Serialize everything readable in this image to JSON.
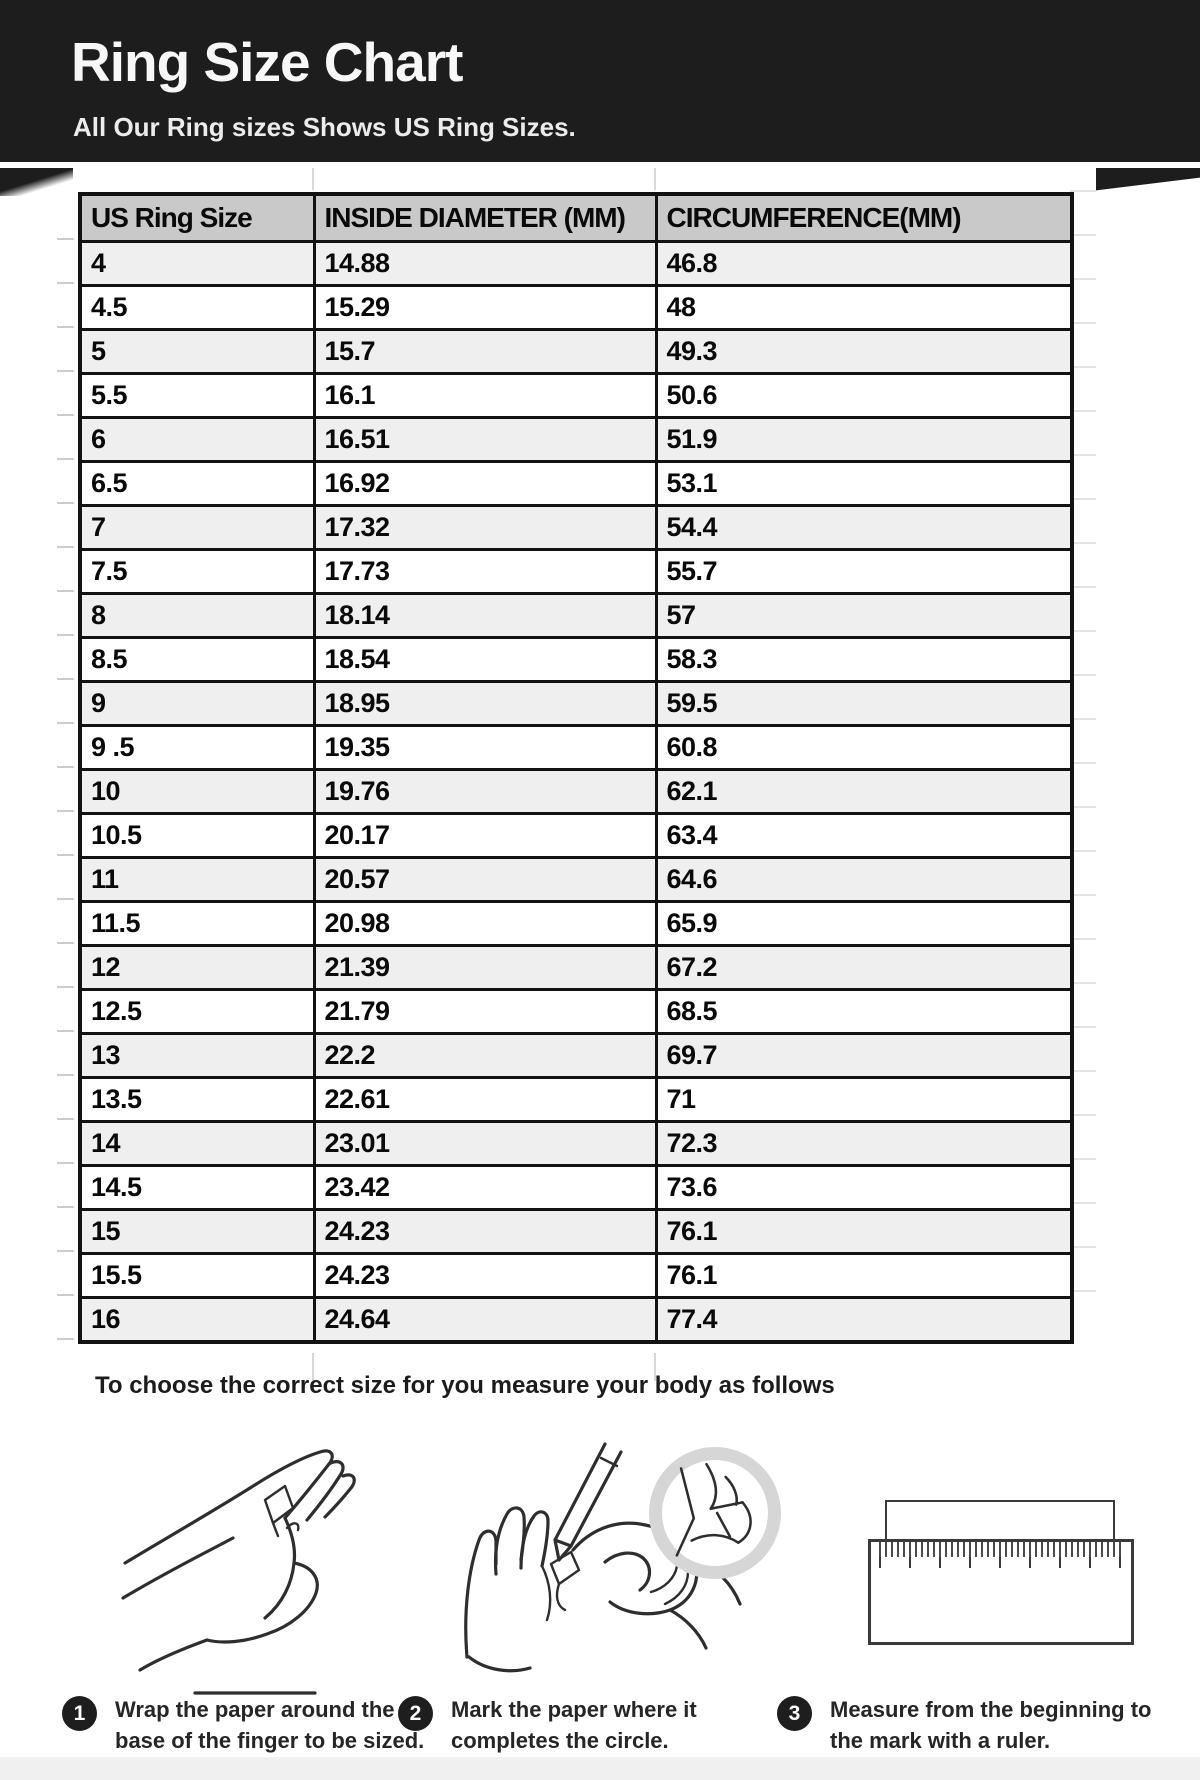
{
  "header": {
    "title": "Ring Size Chart",
    "subtitle": "All Our Ring sizes Shows US Ring Sizes."
  },
  "table": {
    "columns": [
      "US Ring Size",
      "INSIDE DIAMETER (MM)",
      "CIRCUMFERENCE(MM)"
    ],
    "rows": [
      [
        "4",
        "14.88",
        "46.8"
      ],
      [
        "4.5",
        "15.29",
        "48"
      ],
      [
        "5",
        "15.7",
        "49.3"
      ],
      [
        "5.5",
        "16.1",
        "50.6"
      ],
      [
        "6",
        "16.51",
        "51.9"
      ],
      [
        "6.5",
        "16.92",
        "53.1"
      ],
      [
        "7",
        "17.32",
        "54.4"
      ],
      [
        "7.5",
        "17.73",
        "55.7"
      ],
      [
        "8",
        "18.14",
        "57"
      ],
      [
        "8.5",
        "18.54",
        "58.3"
      ],
      [
        "9",
        "18.95",
        "59.5"
      ],
      [
        "9 .5",
        "19.35",
        "60.8"
      ],
      [
        "10",
        "19.76",
        "62.1"
      ],
      [
        "10.5",
        "20.17",
        "63.4"
      ],
      [
        "11",
        "20.57",
        "64.6"
      ],
      [
        "11.5",
        "20.98",
        "65.9"
      ],
      [
        "12",
        "21.39",
        "67.2"
      ],
      [
        "12.5",
        "21.79",
        "68.5"
      ],
      [
        "13",
        "22.2",
        "69.7"
      ],
      [
        "13.5",
        "22.61",
        "71"
      ],
      [
        "14",
        "23.01",
        "72.3"
      ],
      [
        "14.5",
        "23.42",
        "73.6"
      ],
      [
        "15",
        "24.23",
        "76.1"
      ],
      [
        "15.5",
        "24.23",
        "76.1"
      ],
      [
        "16",
        "24.64",
        "77.4"
      ]
    ]
  },
  "chart_data": {
    "type": "table",
    "title": "Ring Size Chart",
    "columns": [
      "US Ring Size",
      "INSIDE DIAMETER (MM)",
      "CIRCUMFERENCE(MM)"
    ],
    "us_ring_size": [
      "4",
      "4.5",
      "5",
      "5.5",
      "6",
      "6.5",
      "7",
      "7.5",
      "8",
      "8.5",
      "9",
      "9 .5",
      "10",
      "10.5",
      "11",
      "11.5",
      "12",
      "12.5",
      "13",
      "13.5",
      "14",
      "14.5",
      "15",
      "15.5",
      "16"
    ],
    "inside_diameter_mm": [
      14.88,
      15.29,
      15.7,
      16.1,
      16.51,
      16.92,
      17.32,
      17.73,
      18.14,
      18.54,
      18.95,
      19.35,
      19.76,
      20.17,
      20.57,
      20.98,
      21.39,
      21.79,
      22.2,
      22.61,
      23.01,
      23.42,
      24.23,
      24.23,
      24.64
    ],
    "circumference_mm": [
      46.8,
      48,
      49.3,
      50.6,
      51.9,
      53.1,
      54.4,
      55.7,
      57,
      58.3,
      59.5,
      60.8,
      62.1,
      63.4,
      64.6,
      65.9,
      67.2,
      68.5,
      69.7,
      71,
      72.3,
      73.6,
      76.1,
      76.1,
      77.4
    ]
  },
  "instructions": {
    "intro": "To choose the correct size for you measure your body as follows",
    "steps": [
      {
        "number": "1",
        "text": "Wrap the paper around the base of the finger to be sized."
      },
      {
        "number": "2",
        "text": "Mark the paper where it completes the circle."
      },
      {
        "number": "3",
        "text": "Measure from the beginning to the mark with a ruler."
      }
    ]
  },
  "colors": {
    "banner_bg": "#1d1d1d",
    "header_row_bg": "#c9c9c9",
    "alt_row_bg": "#efefef",
    "table_border": "#121212",
    "magnifier_ring": "#d6d6d6"
  }
}
